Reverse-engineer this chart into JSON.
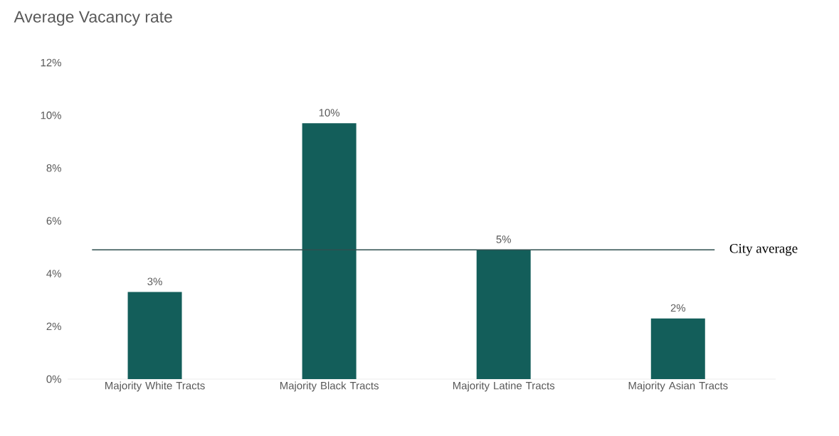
{
  "chart_data": {
    "type": "bar",
    "title": "Average Vacancy rate",
    "categories": [
      "Majority White Tracts",
      "Majority Black Tracts",
      "Majority Latine Tracts",
      "Majority Asian Tracts"
    ],
    "values": [
      3.3,
      9.7,
      4.9,
      2.3
    ],
    "value_labels": [
      "3%",
      "10%",
      "5%",
      "2%"
    ],
    "color": "#135e5a",
    "ylim": [
      0,
      12
    ],
    "yticks": [
      {
        "value": 0,
        "label": "0%"
      },
      {
        "value": 2,
        "label": "2%"
      },
      {
        "value": 4,
        "label": "4%"
      },
      {
        "value": 6,
        "label": "6%"
      },
      {
        "value": 8,
        "label": "8%"
      },
      {
        "value": 10,
        "label": "10%"
      },
      {
        "value": 12,
        "label": "12%"
      }
    ],
    "ref_lines": [
      {
        "axis": "y",
        "value": 4.9,
        "label": "City average",
        "color": "#2f4f4f"
      }
    ]
  }
}
